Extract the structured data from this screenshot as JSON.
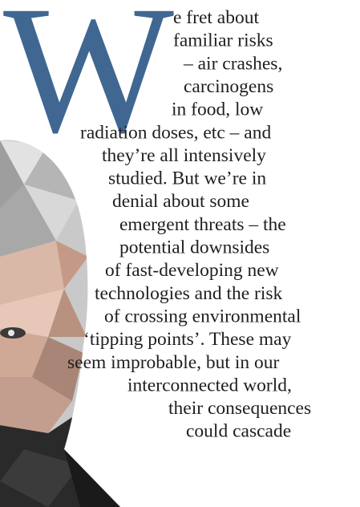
{
  "dropcap": "W",
  "lines": [
    "e fret about",
    "familiar risks",
    "– air crashes,",
    "carcinogens",
    "in food, low",
    "radiation doses, etc – and",
    "they’re all intensively",
    "studied. But we’re in",
    "denial about some",
    "emergent threats – the",
    "potential downsides",
    "of fast-developing new",
    "technologies and the risk",
    "of crossing environmental",
    "‘tipping points’. These may",
    "seem improbable, but in our",
    "interconnected world,",
    "their consequences",
    "could cascade"
  ]
}
